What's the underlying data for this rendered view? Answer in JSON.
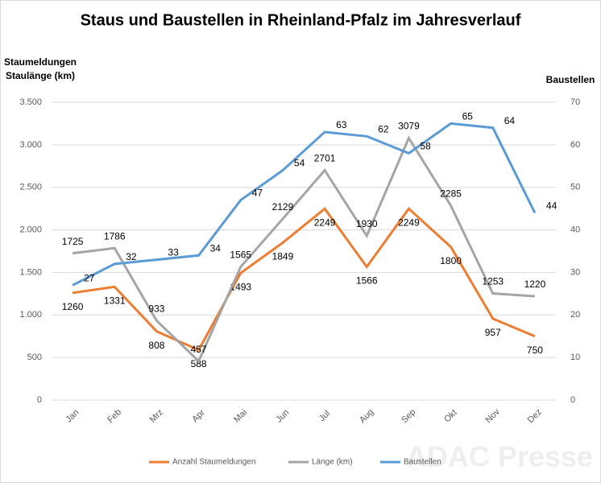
{
  "chart_data": {
    "type": "line",
    "title": "Staus und Baustellen in Rheinland-Pfalz im Jahresverlauf",
    "ylabel": [
      "Staumeldungen",
      "Staulänge (km)"
    ],
    "y2label": "Baustellen",
    "watermark": "ADAC Presse",
    "categories": [
      "Jan",
      "Feb",
      "Mrz",
      "Apr",
      "Mai",
      "Jun",
      "Jul",
      "Aug",
      "Sep",
      "Okt",
      "Nov",
      "Dez"
    ],
    "series": [
      {
        "name": "Anzahl Staumeldungen",
        "color": "#ed7d31",
        "values": [
          1260,
          1331,
          808,
          588,
          1493,
          1849,
          2249,
          1566,
          2249,
          1800,
          957,
          750
        ]
      },
      {
        "name": "Länge (km)",
        "color": "#a5a5a5",
        "values": [
          1725,
          1786,
          933,
          457,
          1565,
          2129,
          2701,
          1930,
          3079,
          2285,
          1253,
          1220
        ]
      },
      {
        "name": "Baustellen",
        "color": "#5b9bd5",
        "axis": "y2",
        "values": [
          27,
          32,
          33,
          34,
          47,
          54,
          63,
          62,
          58,
          65,
          64,
          44
        ]
      }
    ],
    "ylim": [
      0,
      3500
    ],
    "yticks": [
      0,
      500,
      {
        "value": 1000,
        "label": "1.000"
      },
      {
        "value": 1500,
        "label": "1.500"
      },
      {
        "value": 2000,
        "label": "2.000"
      },
      {
        "value": 2500,
        "label": "2.500"
      },
      {
        "value": 3000,
        "label": "3.000"
      },
      {
        "value": 3500,
        "label": "3.500"
      }
    ],
    "y2lim": [
      0,
      70
    ],
    "y2ticks": [
      0,
      10,
      20,
      30,
      40,
      50,
      60,
      70
    ],
    "grid": true,
    "legend": "bottom"
  }
}
